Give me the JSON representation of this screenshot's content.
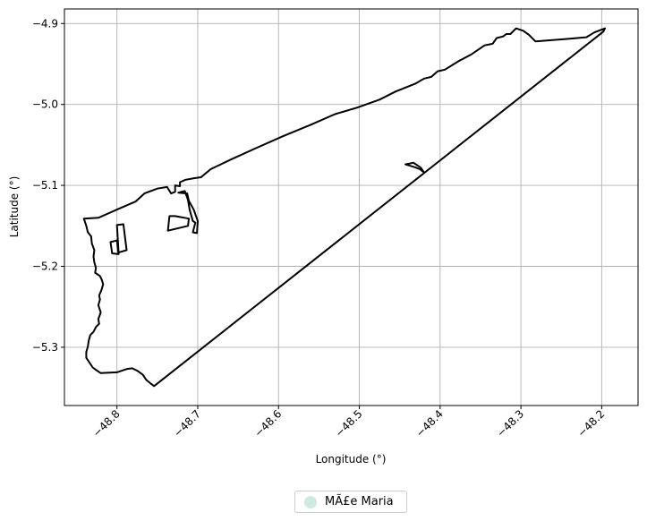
{
  "chart_data": {
    "type": "map",
    "xlabel": "Longitude (°)",
    "ylabel": "Latitude (°)",
    "xlim": [
      -48.865,
      -48.155
    ],
    "ylim": [
      -5.372,
      -4.882
    ],
    "xticks": [
      -48.8,
      -48.7,
      -48.6,
      -48.5,
      -48.4,
      -48.3,
      -48.2
    ],
    "xtick_labels": [
      "−48.8",
      "−48.7",
      "−48.6",
      "−48.5",
      "−48.4",
      "−48.3",
      "−48.2"
    ],
    "yticks": [
      -4.9,
      -5.0,
      -5.1,
      -5.2,
      -5.3
    ],
    "ytick_labels": [
      "−4.9",
      "−5.0",
      "−5.1",
      "−5.2",
      "−5.3"
    ],
    "grid": true,
    "legend": {
      "placement": "bottom-center",
      "entries": [
        {
          "label": "MÃ£e Maria",
          "color": "#cdeae0"
        }
      ]
    },
    "boundary_color": "#000000",
    "rings": [
      [
        [
          -48.841,
          -5.141
        ],
        [
          -48.823,
          -5.14
        ],
        [
          -48.798,
          -5.129
        ],
        [
          -48.777,
          -5.12
        ],
        [
          -48.766,
          -5.11
        ],
        [
          -48.75,
          -5.104
        ],
        [
          -48.738,
          -5.102
        ],
        [
          -48.733,
          -5.11
        ],
        [
          -48.728,
          -5.108
        ],
        [
          -48.728,
          -5.1
        ],
        [
          -48.722,
          -5.101
        ],
        [
          -48.722,
          -5.096
        ],
        [
          -48.715,
          -5.093
        ],
        [
          -48.704,
          -5.091
        ],
        [
          -48.696,
          -5.09
        ],
        [
          -48.684,
          -5.08
        ],
        [
          -48.659,
          -5.068
        ],
        [
          -48.628,
          -5.054
        ],
        [
          -48.594,
          -5.039
        ],
        [
          -48.56,
          -5.025
        ],
        [
          -48.53,
          -5.012
        ],
        [
          -48.503,
          -5.004
        ],
        [
          -48.475,
          -4.994
        ],
        [
          -48.455,
          -4.984
        ],
        [
          -48.44,
          -4.978
        ],
        [
          -48.43,
          -4.974
        ],
        [
          -48.42,
          -4.968
        ],
        [
          -48.411,
          -4.966
        ],
        [
          -48.403,
          -4.959
        ],
        [
          -48.394,
          -4.957
        ],
        [
          -48.378,
          -4.947
        ],
        [
          -48.361,
          -4.938
        ],
        [
          -48.345,
          -4.927
        ],
        [
          -48.335,
          -4.925
        ],
        [
          -48.33,
          -4.918
        ],
        [
          -48.322,
          -4.916
        ],
        [
          -48.318,
          -4.913
        ],
        [
          -48.313,
          -4.913
        ],
        [
          -48.306,
          -4.906
        ],
        [
          -48.297,
          -4.909
        ],
        [
          -48.29,
          -4.914
        ],
        [
          -48.282,
          -4.922
        ],
        [
          -48.243,
          -4.919
        ],
        [
          -48.219,
          -4.917
        ],
        [
          -48.209,
          -4.911
        ],
        [
          -48.196,
          -4.906
        ],
        [
          -48.198,
          -4.91
        ],
        [
          -48.754,
          -5.348
        ],
        [
          -48.758,
          -5.345
        ],
        [
          -48.764,
          -5.34
        ],
        [
          -48.768,
          -5.334
        ],
        [
          -48.775,
          -5.329
        ],
        [
          -48.781,
          -5.326
        ],
        [
          -48.788,
          -5.327
        ],
        [
          -48.8,
          -5.331
        ],
        [
          -48.82,
          -5.332
        ],
        [
          -48.826,
          -5.328
        ],
        [
          -48.83,
          -5.325
        ],
        [
          -48.834,
          -5.319
        ],
        [
          -48.838,
          -5.313
        ],
        [
          -48.838,
          -5.306
        ],
        [
          -48.836,
          -5.299
        ],
        [
          -48.835,
          -5.292
        ],
        [
          -48.833,
          -5.285
        ],
        [
          -48.829,
          -5.281
        ],
        [
          -48.826,
          -5.275
        ],
        [
          -48.822,
          -5.271
        ],
        [
          -48.823,
          -5.265
        ],
        [
          -48.82,
          -5.257
        ],
        [
          -48.823,
          -5.248
        ],
        [
          -48.821,
          -5.241
        ],
        [
          -48.822,
          -5.236
        ],
        [
          -48.819,
          -5.229
        ],
        [
          -48.817,
          -5.222
        ],
        [
          -48.819,
          -5.216
        ],
        [
          -48.821,
          -5.212
        ],
        [
          -48.824,
          -5.21
        ],
        [
          -48.827,
          -5.208
        ],
        [
          -48.826,
          -5.202
        ],
        [
          -48.828,
          -5.195
        ],
        [
          -48.829,
          -5.188
        ],
        [
          -48.828,
          -5.18
        ],
        [
          -48.831,
          -5.172
        ],
        [
          -48.832,
          -5.163
        ],
        [
          -48.836,
          -5.158
        ],
        [
          -48.838,
          -5.15
        ],
        [
          -48.841,
          -5.141
        ]
      ],
      [
        [
          -48.443,
          -5.074
        ],
        [
          -48.433,
          -5.072
        ],
        [
          -48.424,
          -5.078
        ],
        [
          -48.42,
          -5.084
        ],
        [
          -48.425,
          -5.08
        ],
        [
          -48.43,
          -5.078
        ],
        [
          -48.443,
          -5.074
        ]
      ],
      [
        [
          -48.8,
          -5.149
        ],
        [
          -48.792,
          -5.148
        ],
        [
          -48.788,
          -5.18
        ],
        [
          -48.798,
          -5.183
        ],
        [
          -48.8,
          -5.149
        ]
      ],
      [
        [
          -48.808,
          -5.17
        ],
        [
          -48.8,
          -5.168
        ],
        [
          -48.798,
          -5.185
        ],
        [
          -48.806,
          -5.184
        ],
        [
          -48.808,
          -5.17
        ]
      ],
      [
        [
          -48.724,
          -5.109
        ],
        [
          -48.716,
          -5.107
        ],
        [
          -48.712,
          -5.118
        ],
        [
          -48.71,
          -5.13
        ],
        [
          -48.706,
          -5.144
        ],
        [
          -48.703,
          -5.146
        ],
        [
          -48.706,
          -5.158
        ],
        [
          -48.701,
          -5.159
        ],
        [
          -48.7,
          -5.144
        ],
        [
          -48.705,
          -5.13
        ],
        [
          -48.711,
          -5.119
        ],
        [
          -48.713,
          -5.11
        ],
        [
          -48.724,
          -5.109
        ]
      ],
      [
        [
          -48.735,
          -5.138
        ],
        [
          -48.737,
          -5.156
        ],
        [
          -48.712,
          -5.15
        ],
        [
          -48.711,
          -5.141
        ],
        [
          -48.728,
          -5.138
        ],
        [
          -48.735,
          -5.138
        ]
      ]
    ]
  }
}
